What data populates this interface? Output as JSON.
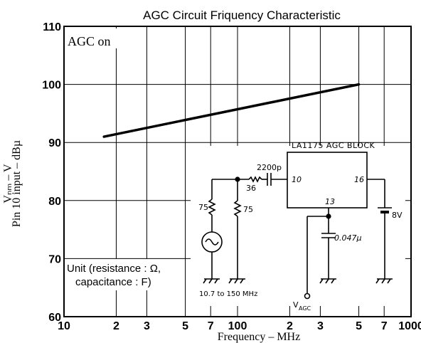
{
  "chart_data": {
    "type": "line",
    "title": "AGC Circuit Friquency Characteristic",
    "xlabel": "Frequency  –  MHz",
    "ylabel": "Pin 10 input  –  dBµ",
    "ylabel_cut": "Vₙₘ  –  V",
    "x_scale": "log",
    "xlim": [
      10,
      1000
    ],
    "ylim": [
      60,
      110
    ],
    "x_ticks": [
      10,
      20,
      30,
      50,
      70,
      100,
      200,
      300,
      500,
      700,
      1000
    ],
    "x_tick_labels": [
      "10",
      "2",
      "3",
      "5",
      "7",
      "100",
      "2",
      "3",
      "5",
      "7",
      "1000"
    ],
    "y_ticks": [
      60,
      70,
      80,
      90,
      100,
      110
    ],
    "y_tick_labels": [
      "60",
      "70",
      "80",
      "90",
      "100",
      "110"
    ],
    "grid": true,
    "series": [
      {
        "x": [
          17,
          500
        ],
        "y": [
          91,
          100
        ]
      }
    ],
    "annotations": {
      "agc_on": "AGC on",
      "unit_line1": "Unit (resistance : Ω,",
      "unit_line2": "capacitance : F)"
    }
  },
  "circuit": {
    "block_label": "LA1175 AGC BLOCK",
    "pin_10": "10",
    "pin_13": "13",
    "pin_16": "16",
    "cap_input": "2200p",
    "r_series": "36",
    "r_left": "75",
    "r_right": "75",
    "cap_agc": "0.047µ",
    "battery": "8V",
    "source_range": "10.7 to 150 MHz",
    "vagc_main": "V",
    "vagc_sub": "AGC"
  },
  "style": {
    "line_color": "#000000",
    "grid_color": "#000000",
    "background": "#ffffff"
  }
}
